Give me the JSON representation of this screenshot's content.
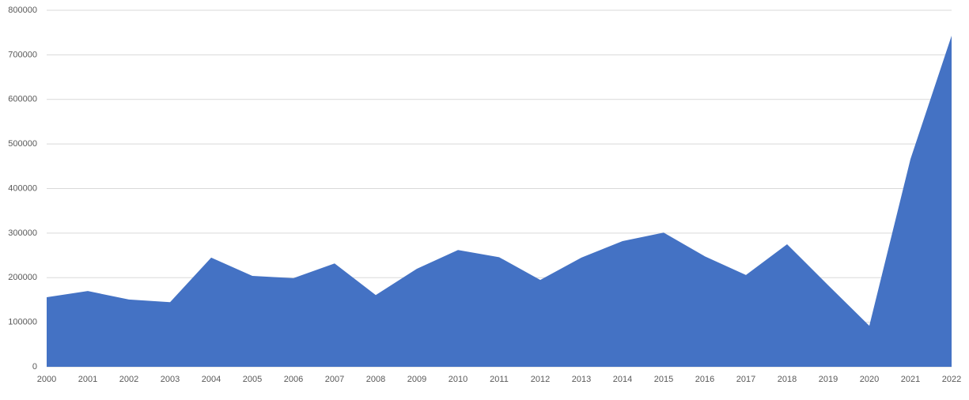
{
  "chart_data": {
    "type": "area",
    "categories": [
      "2000",
      "2001",
      "2002",
      "2003",
      "2004",
      "2005",
      "2006",
      "2007",
      "2008",
      "2009",
      "2010",
      "2011",
      "2012",
      "2013",
      "2014",
      "2015",
      "2016",
      "2017",
      "2018",
      "2019",
      "2020",
      "2021",
      "2022"
    ],
    "values": [
      156000,
      170000,
      151000,
      145000,
      245000,
      204000,
      199000,
      232000,
      161000,
      220000,
      262000,
      246000,
      195000,
      245000,
      282000,
      301000,
      248000,
      206000,
      275000,
      183000,
      92000,
      466000,
      743000
    ],
    "color": "#4472c4",
    "ylim": [
      0,
      800000
    ],
    "yticks": [
      0,
      100000,
      200000,
      300000,
      400000,
      500000,
      600000,
      700000,
      800000
    ],
    "grid": true
  }
}
